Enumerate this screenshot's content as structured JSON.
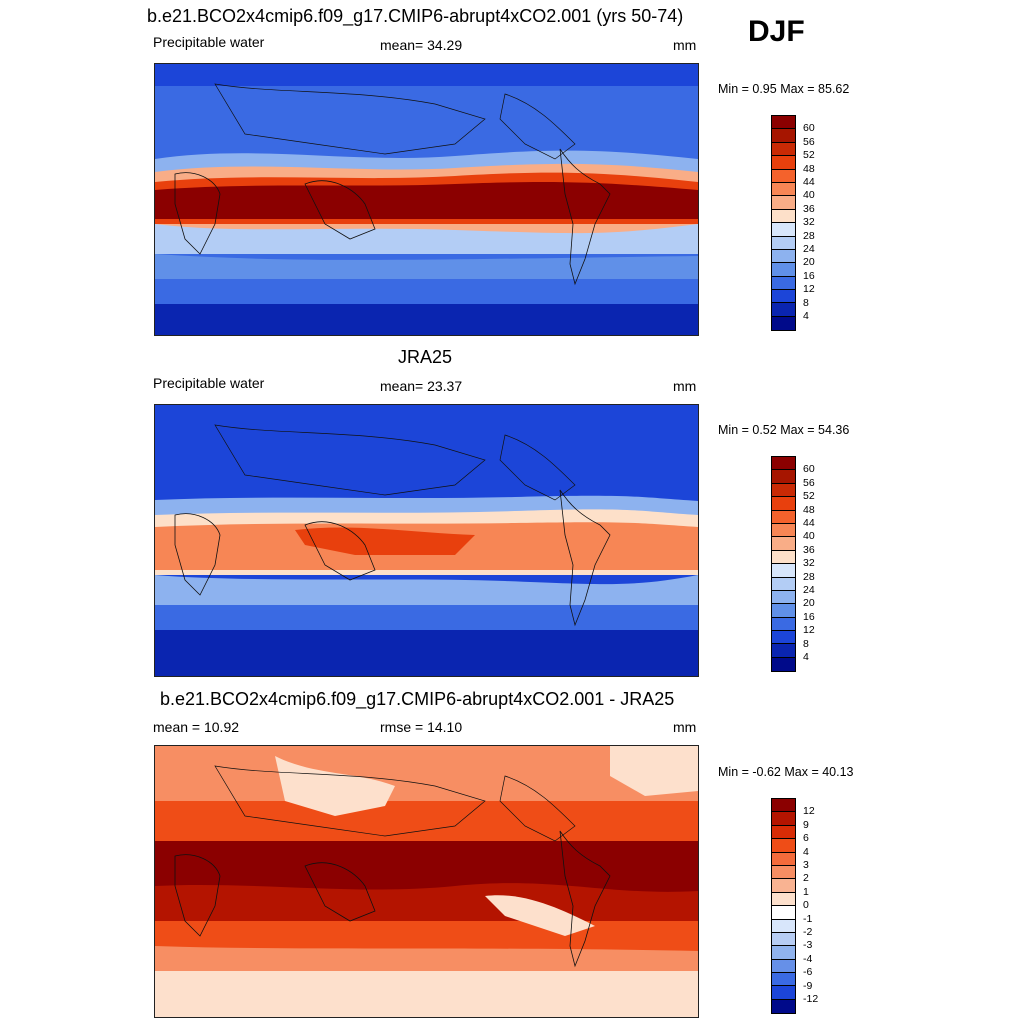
{
  "season": "DJF",
  "panels": [
    {
      "id": "model",
      "title": "b.e21.BCO2x4cmip6.f09_g17.CMIP6-abrupt4xCO2.001 (yrs 50-74)",
      "left_label": "Precipitable water",
      "center_label": "mean=  34.29",
      "right_label": "mm",
      "min_max": "Min =   0.95 Max =  85.62",
      "palette": "moist",
      "colorbar_labels": [
        "60",
        "56",
        "52",
        "48",
        "44",
        "40",
        "36",
        "32",
        "28",
        "24",
        "20",
        "16",
        "12",
        "8",
        "4"
      ]
    },
    {
      "id": "obs",
      "title": "JRA25",
      "left_label": "Precipitable water",
      "center_label": "mean=  23.37",
      "right_label": "mm",
      "min_max": "Min =   0.52 Max =  54.36",
      "palette": "moist",
      "colorbar_labels": [
        "60",
        "56",
        "52",
        "48",
        "44",
        "40",
        "36",
        "32",
        "28",
        "24",
        "20",
        "16",
        "12",
        "8",
        "4"
      ]
    },
    {
      "id": "diff",
      "title": "b.e21.BCO2x4cmip6.f09_g17.CMIP6-abrupt4xCO2.001 - JRA25",
      "left_label": "mean =  10.92",
      "center_label": "rmse =  14.10",
      "right_label": "mm",
      "min_max": "Min =  -0.62 Max =  40.13",
      "palette": "diff",
      "colorbar_labels": [
        "12",
        "9",
        "6",
        "4",
        "3",
        "2",
        "1",
        "0",
        "-1",
        "-2",
        "-3",
        "-4",
        "-6",
        "-9",
        "-12"
      ]
    }
  ],
  "palettes": {
    "moist": [
      "#8b0000",
      "#a61500",
      "#c92a05",
      "#e8400d",
      "#f4622c",
      "#f78655",
      "#f9ad87",
      "#fde0c9",
      "#d7e6fb",
      "#b3cdf5",
      "#8db2ef",
      "#6090e8",
      "#3a6ae3",
      "#1c45d8",
      "#0a25b0",
      "#000a8a"
    ],
    "diff": [
      "#8b0000",
      "#b41400",
      "#d82c06",
      "#ef4d17",
      "#f46b3b",
      "#f78e63",
      "#f9b392",
      "#fde0cc",
      "#ffffff",
      "#d8e6fb",
      "#b7cdf4",
      "#90b3ee",
      "#6690e8",
      "#3a6ae3",
      "#1c45d8",
      "#000a8a"
    ]
  }
}
